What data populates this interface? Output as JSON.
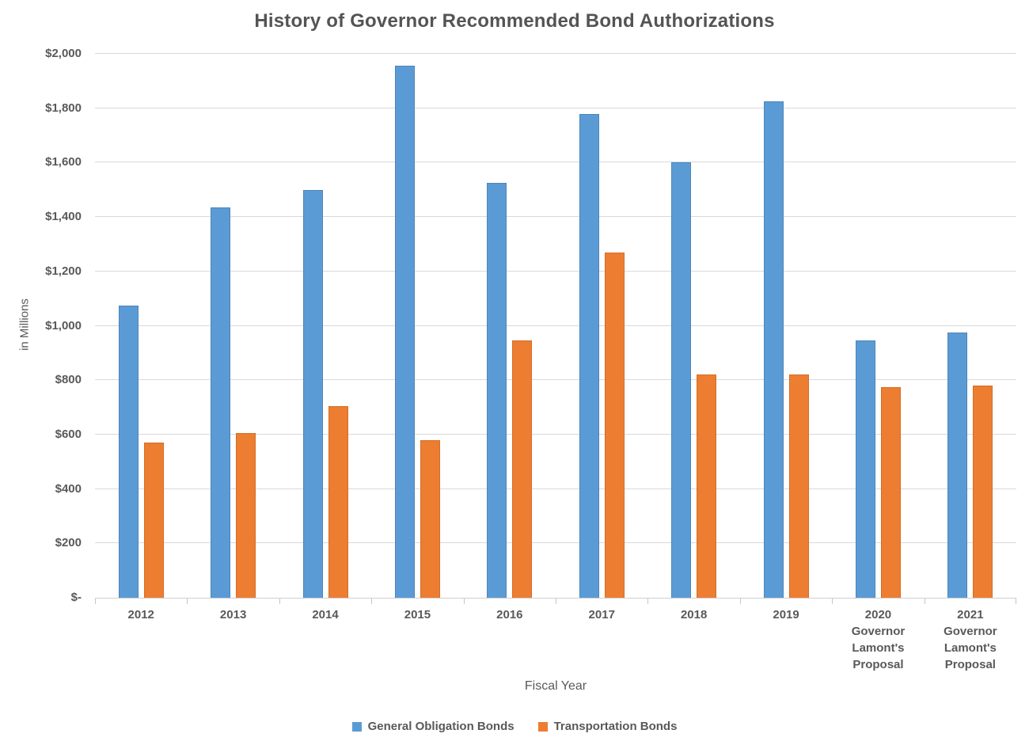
{
  "chart_data": {
    "type": "bar",
    "title": "History of Governor Recommended Bond Authorizations",
    "xlabel": "Fiscal Year",
    "ylabel": "in Millions",
    "ylim": [
      0,
      2000
    ],
    "ytick_step": 200,
    "ytick_labels": [
      "$-",
      "$200",
      "$400",
      "$600",
      "$800",
      "$1,000",
      "$1,200",
      "$1,400",
      "$1,600",
      "$1,800",
      "$2,000"
    ],
    "grid": true,
    "legend_position": "bottom",
    "categories": [
      "2012",
      "2013",
      "2014",
      "2015",
      "2016",
      "2017",
      "2018",
      "2019",
      "2020\nGovernor\nLamont's\nProposal",
      "2021\nGovernor\nLamont's\nProposal"
    ],
    "series": [
      {
        "name": "General Obligation Bonds",
        "color": "#5B9BD5",
        "values": [
          1075,
          1435,
          1500,
          1955,
          1525,
          1780,
          1600,
          1825,
          945,
          975
        ]
      },
      {
        "name": "Transportation Bonds",
        "color": "#ED7D31",
        "values": [
          570,
          605,
          705,
          580,
          945,
          1270,
          820,
          820,
          775,
          780
        ]
      }
    ]
  },
  "colors": {
    "gridline": "#D9D9D9",
    "axis_line": "#CFCFCF",
    "text": "#595959",
    "background": "#FFFFFF"
  }
}
